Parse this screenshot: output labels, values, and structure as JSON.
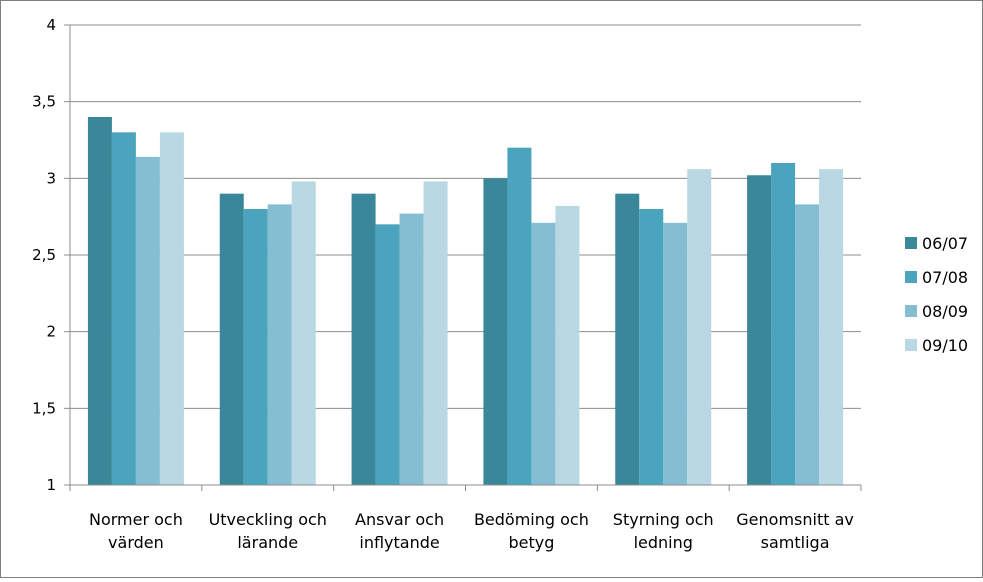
{
  "chart_data": {
    "type": "bar",
    "categories": [
      [
        "Normer och",
        "värden"
      ],
      [
        "Utveckling och",
        "lärande"
      ],
      [
        "Ansvar och",
        "inflytande"
      ],
      [
        "Bedöming och",
        "betyg"
      ],
      [
        "Styrning och",
        "ledning"
      ],
      [
        "Genomsnitt av",
        "samtliga"
      ]
    ],
    "series": [
      {
        "name": "06/07",
        "color": "#3a8799",
        "values": [
          3.4,
          2.9,
          2.9,
          3.0,
          2.9,
          3.02
        ]
      },
      {
        "name": "07/08",
        "color": "#4aa4bd",
        "values": [
          3.3,
          2.8,
          2.7,
          3.2,
          2.8,
          3.1
        ]
      },
      {
        "name": "08/09",
        "color": "#85bed3",
        "values": [
          3.14,
          2.83,
          2.77,
          2.71,
          2.71,
          2.83
        ]
      },
      {
        "name": "09/10",
        "color": "#b9d8e3",
        "values": [
          3.3,
          2.98,
          2.98,
          2.82,
          3.06,
          3.06
        ]
      }
    ],
    "yticks": [
      "1",
      "1,5",
      "2",
      "2,5",
      "3",
      "3,5",
      "4"
    ],
    "ylim": [
      1,
      4
    ],
    "grid": true,
    "legend_position": "right"
  }
}
